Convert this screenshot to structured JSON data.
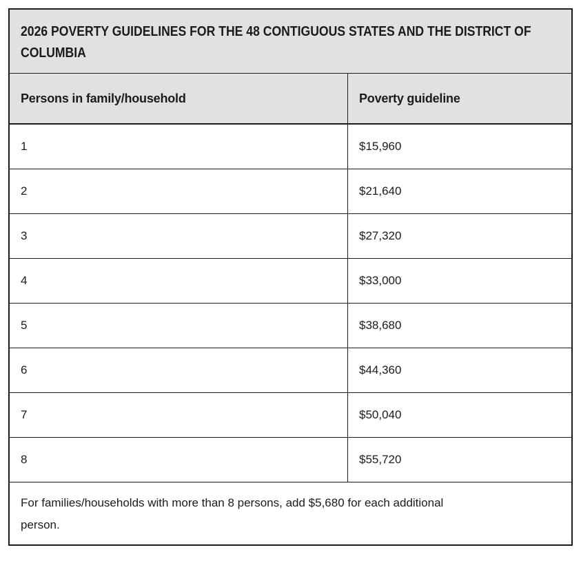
{
  "table": {
    "title_lines": [
      "2026 POVERTY GUIDELINES FOR THE 48 CONTIGUOUS STATES AND THE DISTRICT OF",
      "COLUMBIA"
    ],
    "title_full": "2026 POVERTY GUIDELINES FOR THE 48 CONTIGUOUS STATES AND THE DISTRICT OF COLUMBIA",
    "columns": [
      "Persons in family/household",
      "Poverty guideline"
    ],
    "rows": [
      {
        "persons": "1",
        "guideline": "$15,960"
      },
      {
        "persons": "2",
        "guideline": "$21,640"
      },
      {
        "persons": "3",
        "guideline": "$27,320"
      },
      {
        "persons": "4",
        "guideline": "$33,000"
      },
      {
        "persons": "5",
        "guideline": "$38,680"
      },
      {
        "persons": "6",
        "guideline": "$44,360"
      },
      {
        "persons": "7",
        "guideline": "$50,040"
      },
      {
        "persons": "8",
        "guideline": "$55,720"
      }
    ],
    "footnote_lines": [
      "For families/households with more than 8 persons, add $5,680 for each additional",
      "person."
    ],
    "footnote_full": "For families/households with more than 8 persons, add $5,680 for each additional person.",
    "colors": {
      "header_bg": "#dfe1e2",
      "row_bg": "#ffffff",
      "border": "#1b1b1b",
      "text": "#1b1b1b"
    }
  },
  "chart_data": {
    "type": "table",
    "title": "2026 POVERTY GUIDELINES FOR THE 48 CONTIGUOUS STATES AND THE DISTRICT OF COLUMBIA",
    "columns": [
      "Persons in family/household",
      "Poverty guideline"
    ],
    "rows": [
      [
        "1",
        "$15,960"
      ],
      [
        "2",
        "$21,640"
      ],
      [
        "3",
        "$27,320"
      ],
      [
        "4",
        "$33,000"
      ],
      [
        "5",
        "$38,680"
      ],
      [
        "6",
        "$44,360"
      ],
      [
        "7",
        "$50,040"
      ],
      [
        "8",
        "$55,720"
      ]
    ],
    "footnote": "For families/households with more than 8 persons, add $5,680 for each additional person."
  }
}
